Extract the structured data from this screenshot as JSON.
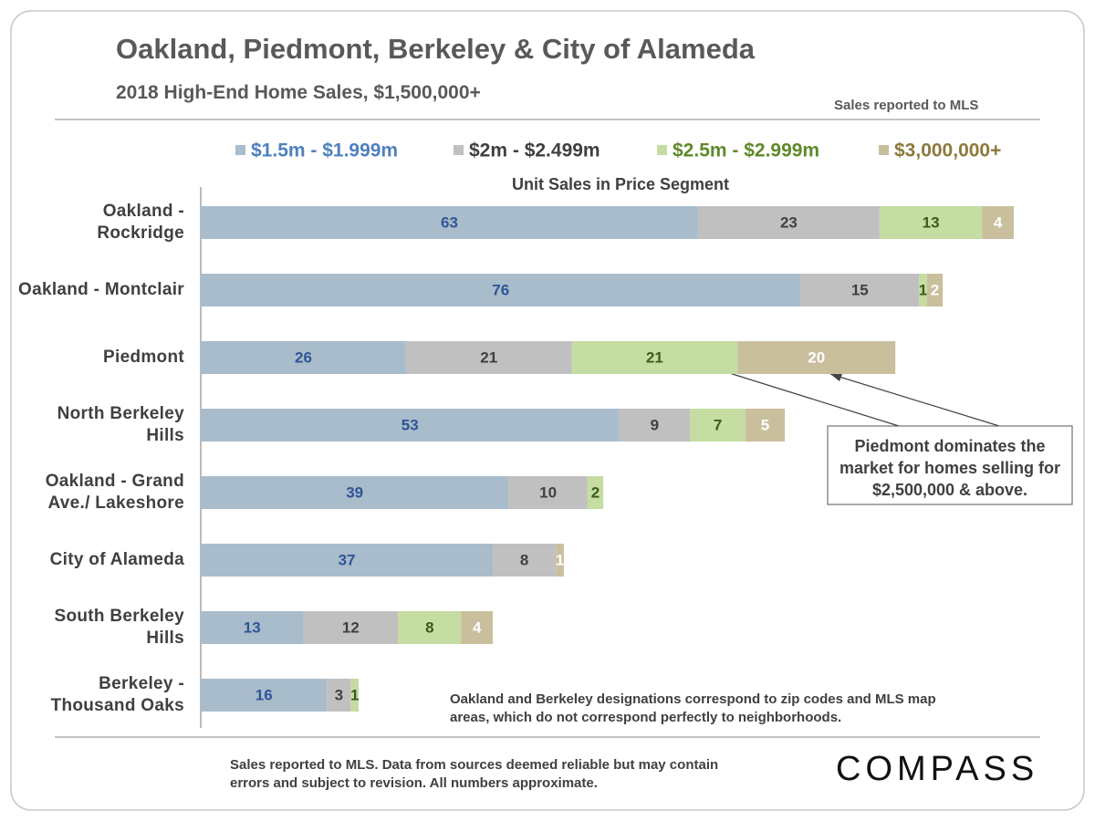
{
  "chart_data": {
    "type": "stacked_barh",
    "title": "Oakland, Piedmont, Berkeley & City of Alameda",
    "subtitle": "2018 High-End Home Sales, $1,500,000+",
    "source_top": "Sales reported to MLS",
    "axis_title": "Unit Sales in Price Segment",
    "categories": [
      "Oakland - Rockridge",
      "Oakland - Montclair",
      "Piedmont",
      "North Berkeley Hills",
      "Oakland - Grand Ave./ Lakeshore",
      "City of Alameda",
      "South Berkeley Hills",
      "Berkeley - Thousand Oaks"
    ],
    "series": [
      {
        "name": "$1.5m - $1.999m",
        "color": "#a9bccb",
        "label_color": "#2f5597",
        "legend_color": "#4f81bd",
        "values": [
          63,
          76,
          26,
          53,
          39,
          37,
          13,
          16
        ]
      },
      {
        "name": "$2m - $2.499m",
        "color": "#c0c0c0",
        "label_color": "#404040",
        "legend_color": "#404040",
        "values": [
          23,
          15,
          21,
          9,
          10,
          8,
          12,
          3
        ]
      },
      {
        "name": "$2.5m - $2.999m",
        "color": "#c5dca2",
        "label_color": "#3b5a1c",
        "legend_color": "#5e8a2a",
        "values": [
          13,
          1,
          21,
          7,
          2,
          null,
          8,
          1
        ]
      },
      {
        "name": "$3,000,000+",
        "color": "#c9bf9d",
        "label_color": "#ffffff",
        "legend_color": "#8c7a3c",
        "values": [
          4,
          2,
          20,
          5,
          null,
          1,
          4,
          null
        ]
      }
    ],
    "xlim": [
      0,
      110
    ],
    "annotation": "Piedmont dominates the market for homes selling for $2,500,000 & above.",
    "note": "Oakland and Berkeley designations correspond to zip codes and MLS map areas, which do not correspond perfectly to neighborhoods.",
    "footer": "Sales reported to MLS. Data from sources deemed reliable but may contain errors and subject to revision. All numbers approximate.",
    "logo": "COMPASS"
  }
}
